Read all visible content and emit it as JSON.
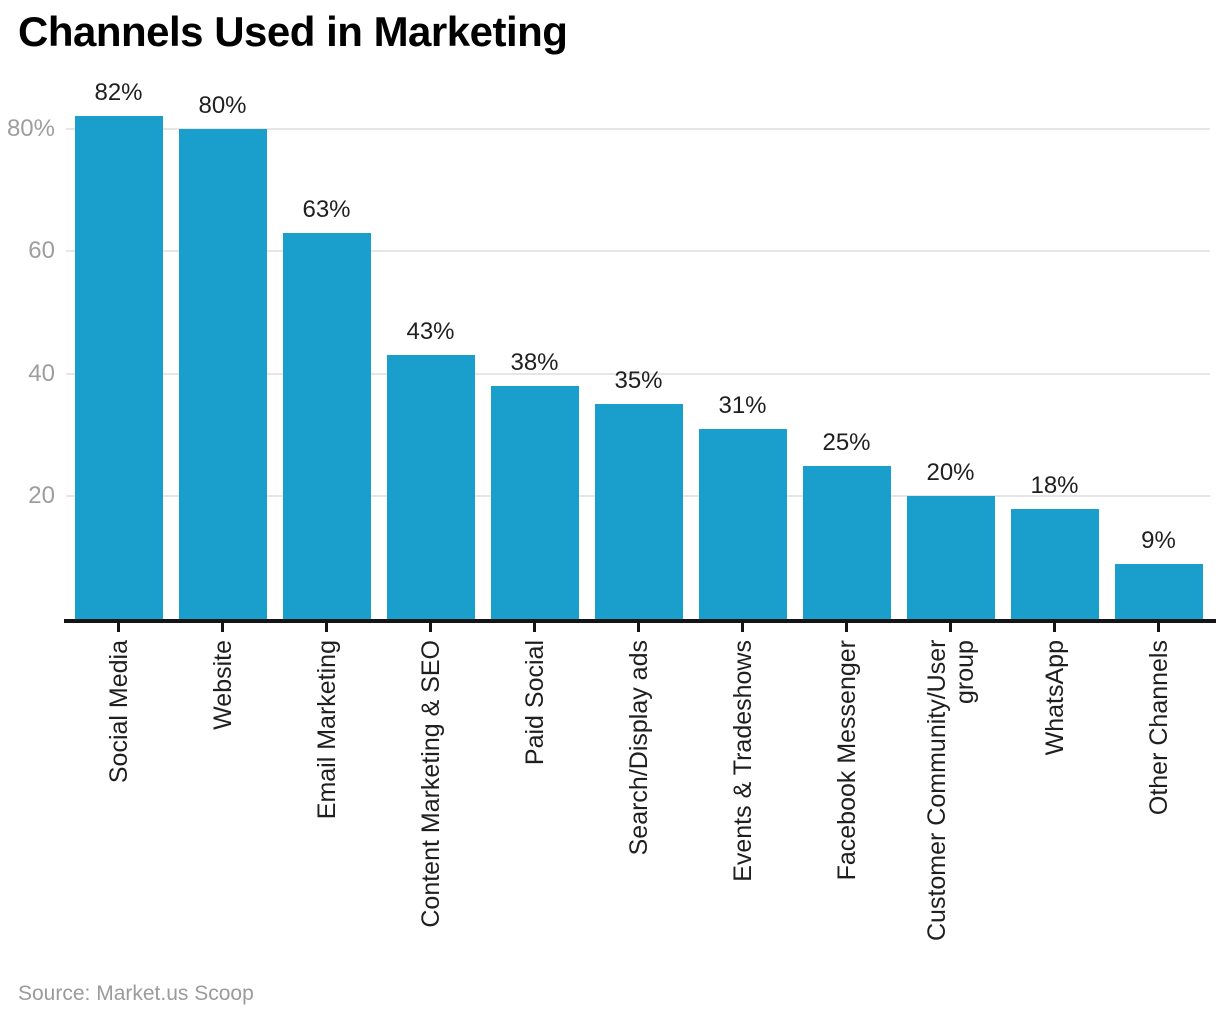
{
  "title": "Channels Used in Marketing",
  "source": "Source: Market.us Scoop",
  "colors": {
    "bar": "#1a9fcc",
    "gridline": "#e6e6e6",
    "axis": "#141414",
    "y_tick_label": "#9e9e9e",
    "value_label": "#1f1f1f",
    "category_label": "#1f1f1f",
    "title": "#000000",
    "source": "#9b9b9b",
    "background": "#ffffff"
  },
  "chart_data": {
    "type": "bar",
    "title": "Channels Used in Marketing",
    "categories": [
      "Social Media",
      "Website",
      "Email Marketing",
      "Content Marketing & SEO",
      "Paid Social",
      "Search/Display ads",
      "Events & Tradeshows",
      "Facebook Messenger",
      "Customer Community/User group",
      "WhatsApp",
      "Other Channels"
    ],
    "values": [
      82,
      80,
      63,
      43,
      38,
      35,
      31,
      25,
      20,
      18,
      9
    ],
    "value_labels": [
      "82%",
      "80%",
      "63%",
      "43%",
      "38%",
      "35%",
      "31%",
      "25%",
      "20%",
      "18%",
      "9%"
    ],
    "y_ticks": [
      {
        "value": 20,
        "label": "20"
      },
      {
        "value": 40,
        "label": "40"
      },
      {
        "value": 60,
        "label": "60"
      },
      {
        "value": 80,
        "label": "80%"
      }
    ],
    "ylim": [
      0,
      86
    ],
    "xlabel": "",
    "ylabel": "",
    "grid": "horizontal-only",
    "legend": "none",
    "bar_color": "#1a9fcc",
    "source": "Source: Market.us Scoop"
  }
}
